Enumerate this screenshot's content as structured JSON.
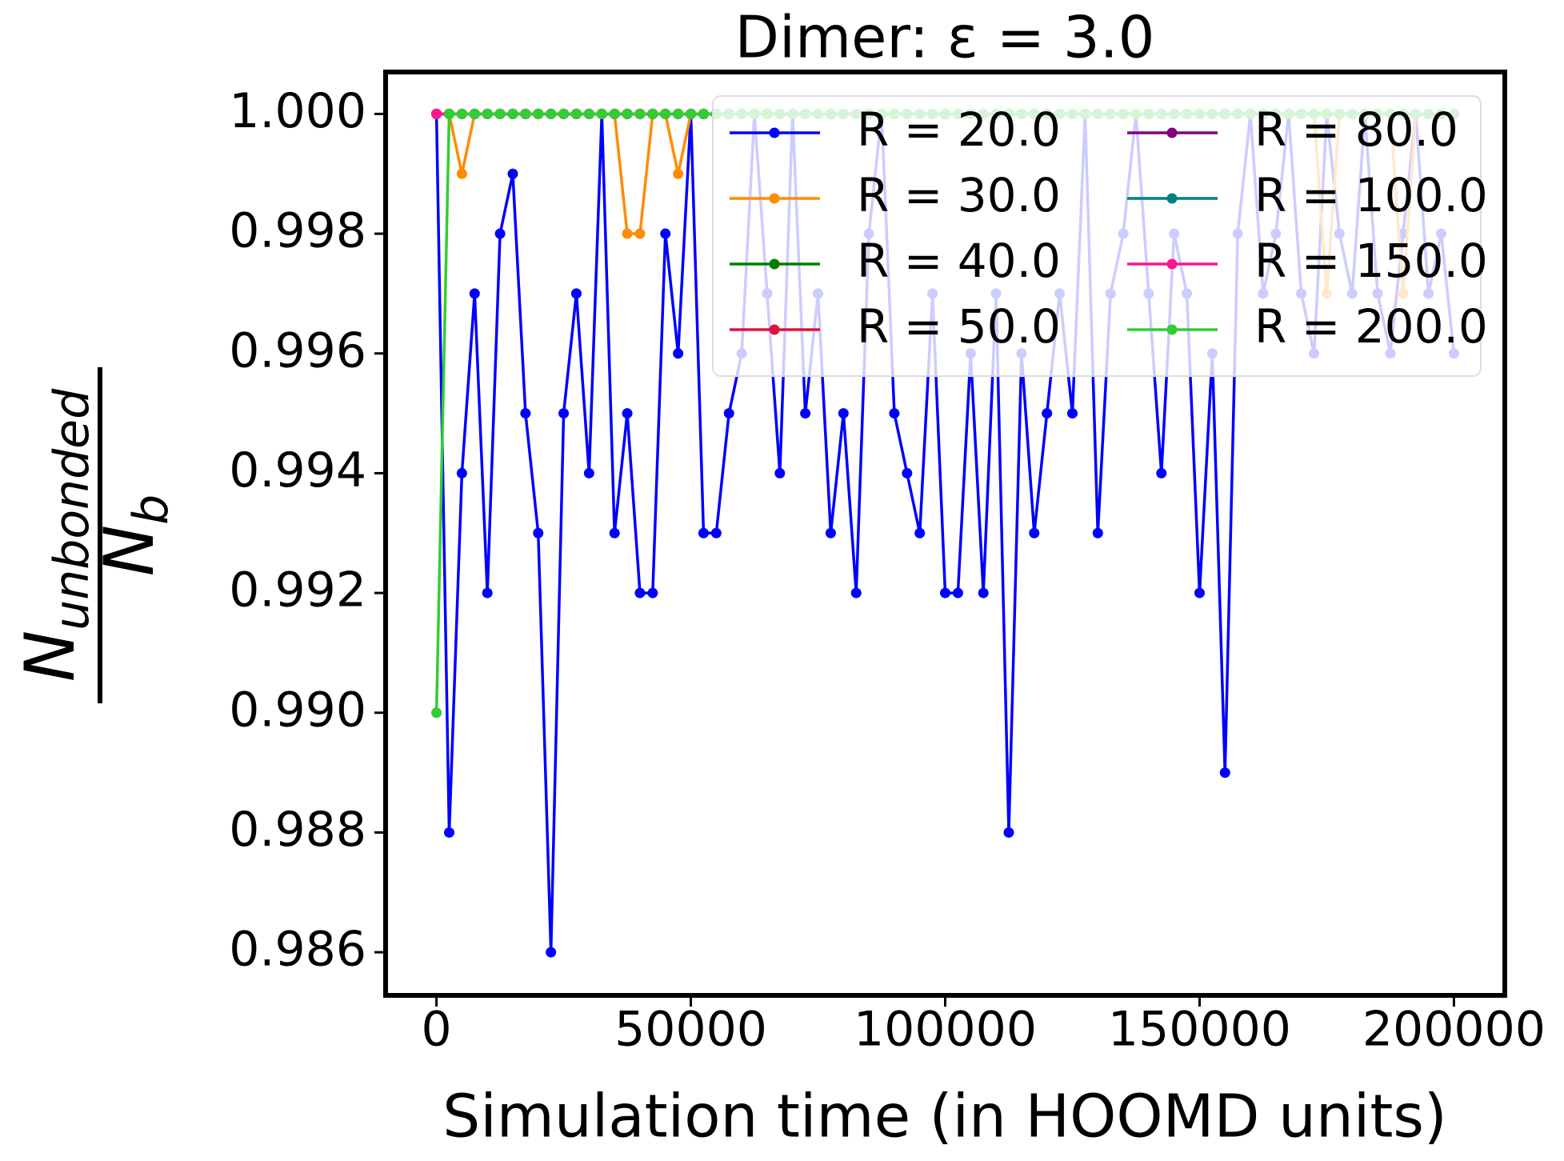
{
  "chart_data": {
    "type": "line",
    "title": "Dimer: ε = 3.0",
    "x_label": "Simulation time (in HOOMD units)",
    "y_label": {
      "numerator": "N",
      "numerator_sub": "unbonded",
      "denominator": "N",
      "denominator_sub": "b"
    },
    "x": [
      0,
      2500,
      5000,
      7500,
      10000,
      12500,
      15000,
      17500,
      20000,
      22500,
      25000,
      27500,
      30000,
      32500,
      35000,
      37500,
      40000,
      42500,
      45000,
      47500,
      50000,
      52500,
      55000,
      57500,
      60000,
      62500,
      65000,
      67500,
      70000,
      72500,
      75000,
      77500,
      80000,
      82500,
      85000,
      87500,
      90000,
      92500,
      95000,
      97500,
      100000,
      102500,
      105000,
      107500,
      110000,
      112500,
      115000,
      117500,
      120000,
      122500,
      125000,
      127500,
      130000,
      132500,
      135000,
      137500,
      140000,
      142500,
      145000,
      147500,
      150000,
      152500,
      155000,
      157500,
      160000,
      162500,
      165000,
      167500,
      170000,
      172500,
      175000,
      177500,
      180000,
      182500,
      185000,
      187500,
      190000,
      192500,
      195000,
      197500,
      200000
    ],
    "series": [
      {
        "name": "R = 20.0",
        "color": "#0000ff",
        "values": [
          1,
          0.988,
          0.994,
          0.997,
          0.992,
          0.998,
          0.999,
          0.995,
          0.993,
          0.986,
          0.995,
          0.997,
          0.994,
          1,
          0.993,
          0.995,
          0.992,
          0.992,
          0.998,
          0.996,
          1,
          0.993,
          0.993,
          0.995,
          0.996,
          1,
          0.997,
          0.994,
          1,
          0.995,
          0.997,
          0.993,
          0.995,
          0.992,
          0.998,
          1,
          0.995,
          0.994,
          0.993,
          0.997,
          0.992,
          0.992,
          0.996,
          0.992,
          0.997,
          0.988,
          0.996,
          0.993,
          0.995,
          0.997,
          0.995,
          1,
          0.993,
          0.997,
          0.998,
          1,
          0.997,
          0.994,
          0.998,
          0.997,
          0.992,
          0.996,
          0.989,
          0.998,
          1,
          0.997,
          0.998,
          1,
          0.997,
          0.996,
          1,
          0.998,
          0.997,
          1,
          0.997,
          0.996,
          0.998,
          1,
          0.997,
          0.998,
          0.996
        ]
      },
      {
        "name": "R = 30.0",
        "color": "#ff8c00",
        "values": [
          1,
          1,
          0.999,
          1,
          1,
          1,
          1,
          1,
          1,
          1,
          1,
          1,
          1,
          1,
          1,
          0.998,
          0.998,
          1,
          1,
          0.999,
          1,
          1,
          1,
          1,
          1,
          1,
          1,
          1,
          1,
          1,
          1,
          1,
          1,
          1,
          1,
          1,
          1,
          1,
          1,
          1,
          1,
          1,
          1,
          1,
          1,
          1,
          1,
          1,
          1,
          1,
          1,
          1,
          1,
          1,
          1,
          1,
          1,
          1,
          1,
          1,
          1,
          1,
          1,
          1,
          1,
          1,
          1,
          1,
          1,
          1,
          0.997,
          1,
          1,
          1,
          1,
          1,
          0.997,
          1,
          1,
          1,
          1
        ]
      },
      {
        "name": "R = 40.0",
        "color": "#008000",
        "values": [
          1,
          1,
          1,
          1,
          1,
          1,
          1,
          1,
          1,
          1,
          1,
          1,
          1,
          1,
          1,
          1,
          1,
          1,
          1,
          1,
          1,
          1,
          1,
          1,
          1,
          1,
          1,
          1,
          1,
          1,
          1,
          1,
          1,
          1,
          1,
          1,
          1,
          1,
          1,
          1,
          1,
          1,
          1,
          1,
          1,
          1,
          1,
          1,
          1,
          1,
          1,
          1,
          1,
          1,
          1,
          1,
          1,
          1,
          1,
          1,
          1,
          1,
          1,
          1,
          1,
          1,
          1,
          1,
          1,
          1,
          1,
          1,
          1,
          1,
          1,
          1,
          1,
          1,
          1,
          1,
          1
        ]
      },
      {
        "name": "R = 50.0",
        "color": "#dc143c",
        "values": [
          1,
          1,
          1,
          1,
          1,
          1,
          1,
          1,
          1,
          1,
          1,
          1,
          1,
          1,
          1,
          1,
          1,
          1,
          1,
          1,
          1,
          1,
          1,
          1,
          1,
          1,
          1,
          1,
          1,
          1,
          1,
          1,
          1,
          1,
          1,
          1,
          1,
          1,
          1,
          1,
          1,
          1,
          1,
          1,
          1,
          1,
          1,
          1,
          1,
          1,
          1,
          1,
          1,
          1,
          1,
          1,
          1,
          1,
          1,
          1,
          1,
          1,
          1,
          1,
          1,
          1,
          1,
          1,
          1,
          1,
          1,
          1,
          1,
          1,
          1,
          1,
          1,
          1,
          1,
          1,
          1
        ]
      },
      {
        "name": "R = 80.0",
        "color": "#800080",
        "values": [
          1,
          1,
          1,
          1,
          1,
          1,
          1,
          1,
          1,
          1,
          1,
          1,
          1,
          1,
          1,
          1,
          1,
          1,
          1,
          1,
          1,
          1,
          1,
          1,
          1,
          1,
          1,
          1,
          1,
          1,
          1,
          1,
          1,
          1,
          1,
          1,
          1,
          1,
          1,
          1,
          1,
          1,
          1,
          1,
          1,
          1,
          1,
          1,
          1,
          1,
          1,
          1,
          1,
          1,
          1,
          1,
          1,
          1,
          1,
          1,
          1,
          1,
          1,
          1,
          1,
          1,
          1,
          1,
          1,
          1,
          1,
          1,
          1,
          1,
          1,
          1,
          1,
          1,
          1,
          1,
          1
        ]
      },
      {
        "name": "R = 100.0",
        "color": "#008080",
        "values": [
          1,
          1,
          1,
          1,
          1,
          1,
          1,
          1,
          1,
          1,
          1,
          1,
          1,
          1,
          1,
          1,
          1,
          1,
          1,
          1,
          1,
          1,
          1,
          1,
          1,
          1,
          1,
          1,
          1,
          1,
          1,
          1,
          1,
          1,
          1,
          1,
          1,
          1,
          1,
          1,
          1,
          1,
          1,
          1,
          1,
          1,
          1,
          1,
          1,
          1,
          1,
          1,
          1,
          1,
          1,
          1,
          1,
          1,
          1,
          1,
          1,
          1,
          1,
          1,
          1,
          1,
          1,
          1,
          1,
          1,
          1,
          1,
          1,
          1,
          1,
          1,
          1,
          1,
          1,
          1,
          1
        ]
      },
      {
        "name": "R = 150.0",
        "color": "#ff1493",
        "values": [
          1,
          1,
          1,
          1,
          1,
          1,
          1,
          1,
          1,
          1,
          1,
          1,
          1,
          1,
          1,
          1,
          1,
          1,
          1,
          1,
          1,
          1,
          1,
          1,
          1,
          1,
          1,
          1,
          1,
          1,
          1,
          1,
          1,
          1,
          1,
          1,
          1,
          1,
          1,
          1,
          1,
          1,
          1,
          1,
          1,
          1,
          1,
          1,
          1,
          1,
          1,
          1,
          1,
          1,
          1,
          1,
          1,
          1,
          1,
          1,
          1,
          1,
          1,
          1,
          1,
          1,
          1,
          1,
          1,
          1,
          1,
          1,
          1,
          1,
          1,
          1,
          1,
          1,
          1,
          1,
          1
        ]
      },
      {
        "name": "R = 200.0",
        "color": "#32cd32",
        "values": [
          0.99,
          1,
          1,
          1,
          1,
          1,
          1,
          1,
          1,
          1,
          1,
          1,
          1,
          1,
          1,
          1,
          1,
          1,
          1,
          1,
          1,
          1,
          1,
          1,
          1,
          1,
          1,
          1,
          1,
          1,
          1,
          1,
          1,
          1,
          1,
          1,
          1,
          1,
          1,
          1,
          1,
          1,
          1,
          1,
          1,
          1,
          1,
          1,
          1,
          1,
          1,
          1,
          1,
          1,
          1,
          1,
          1,
          1,
          1,
          1,
          1,
          1,
          1,
          1,
          1,
          1,
          1,
          1,
          1,
          1,
          1,
          1,
          1,
          1,
          1,
          1,
          1,
          1,
          1,
          1,
          1
        ]
      }
    ],
    "xlim": [
      -10000,
      210000
    ],
    "xticks": [
      0,
      50000,
      100000,
      150000,
      200000
    ],
    "ylim": [
      0.98528,
      1.0007
    ],
    "yticks": [
      0.986,
      0.988,
      {
        "value": 0.99,
        "label": "0.990"
      },
      0.992,
      0.994,
      0.996,
      0.998,
      {
        "value": 1,
        "label": "1.000"
      }
    ],
    "grid": false,
    "legend": "upper right",
    "legend_columns": 2
  }
}
